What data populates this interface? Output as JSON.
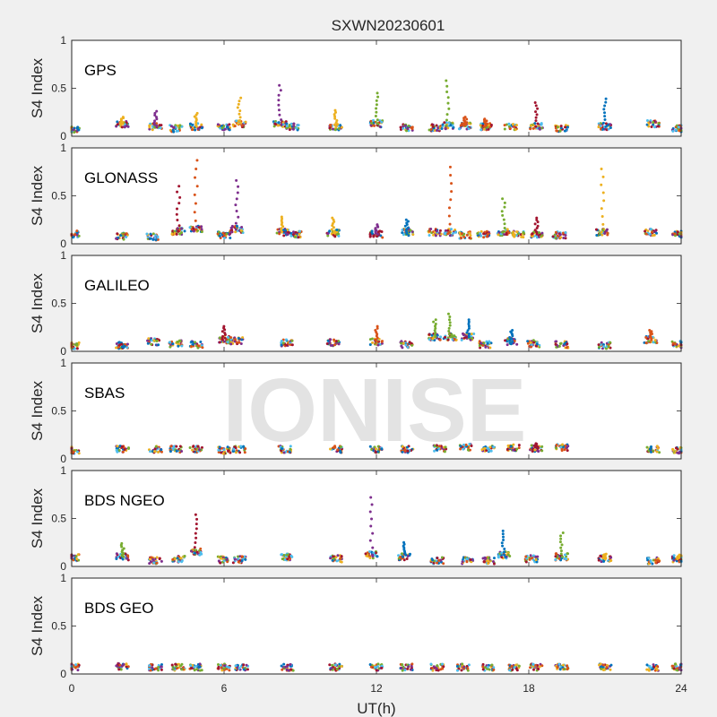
{
  "chart_data": {
    "type": "scatter",
    "title": "SXWN20230601",
    "xlabel": "UT(h)",
    "ylabel": "S4 Index",
    "xlim": [
      0,
      24
    ],
    "ylim": [
      0,
      1
    ],
    "xticks": [
      0,
      6,
      12,
      18,
      24
    ],
    "yticks": [
      0,
      0.5,
      1
    ],
    "ytick_labels": [
      "0",
      "0.5",
      "1"
    ],
    "watermark": "IONISE",
    "palette": [
      "#0072bd",
      "#d95319",
      "#edb120",
      "#7e2f8e",
      "#77ac30",
      "#4dbeee",
      "#a2142f"
    ],
    "panels": [
      {
        "name": "GPS",
        "clusters": [
          {
            "x": 0.05,
            "y": 0.07
          },
          {
            "x": 2.0,
            "y": 0.12,
            "peak": 0.2
          },
          {
            "x": 3.3,
            "y": 0.1,
            "peak": 0.26
          },
          {
            "x": 4.1,
            "y": 0.08
          },
          {
            "x": 4.9,
            "y": 0.1,
            "peak": 0.24
          },
          {
            "x": 6.0,
            "y": 0.09
          },
          {
            "x": 6.6,
            "y": 0.13,
            "peak": 0.4
          },
          {
            "x": 8.2,
            "y": 0.12,
            "peak": 0.53
          },
          {
            "x": 8.7,
            "y": 0.1
          },
          {
            "x": 10.4,
            "y": 0.1,
            "peak": 0.27
          },
          {
            "x": 12.0,
            "y": 0.13,
            "peak": 0.45
          },
          {
            "x": 13.2,
            "y": 0.09
          },
          {
            "x": 14.3,
            "y": 0.09
          },
          {
            "x": 14.8,
            "y": 0.11,
            "peak": 0.58
          },
          {
            "x": 15.5,
            "y": 0.11,
            "peak": 0.2
          },
          {
            "x": 16.3,
            "y": 0.1,
            "peak": 0.18
          },
          {
            "x": 17.3,
            "y": 0.1
          },
          {
            "x": 18.3,
            "y": 0.1,
            "peak": 0.35
          },
          {
            "x": 19.3,
            "y": 0.08
          },
          {
            "x": 21.0,
            "y": 0.1,
            "peak": 0.39
          },
          {
            "x": 22.9,
            "y": 0.13
          },
          {
            "x": 23.9,
            "y": 0.08
          }
        ]
      },
      {
        "name": "GLONASS",
        "clusters": [
          {
            "x": 0.05,
            "y": 0.1
          },
          {
            "x": 2.0,
            "y": 0.08
          },
          {
            "x": 3.2,
            "y": 0.07
          },
          {
            "x": 4.2,
            "y": 0.13,
            "peak": 0.6
          },
          {
            "x": 4.9,
            "y": 0.15,
            "peak": 0.87
          },
          {
            "x": 6.0,
            "y": 0.09
          },
          {
            "x": 6.5,
            "y": 0.15,
            "peak": 0.66
          },
          {
            "x": 8.3,
            "y": 0.12,
            "peak": 0.28
          },
          {
            "x": 8.8,
            "y": 0.1
          },
          {
            "x": 10.3,
            "y": 0.11,
            "peak": 0.27
          },
          {
            "x": 12.0,
            "y": 0.1,
            "peak": 0.2
          },
          {
            "x": 13.2,
            "y": 0.12,
            "peak": 0.25
          },
          {
            "x": 14.3,
            "y": 0.12
          },
          {
            "x": 14.9,
            "y": 0.12,
            "peak": 0.8
          },
          {
            "x": 15.5,
            "y": 0.09
          },
          {
            "x": 16.2,
            "y": 0.1
          },
          {
            "x": 17.0,
            "y": 0.12,
            "peak": 0.47
          },
          {
            "x": 17.6,
            "y": 0.1
          },
          {
            "x": 18.3,
            "y": 0.1,
            "peak": 0.27
          },
          {
            "x": 19.2,
            "y": 0.09
          },
          {
            "x": 20.9,
            "y": 0.12,
            "peak": 0.78
          },
          {
            "x": 22.8,
            "y": 0.12
          },
          {
            "x": 23.9,
            "y": 0.1
          }
        ]
      },
      {
        "name": "GALILEO",
        "clusters": [
          {
            "x": 0.05,
            "y": 0.06
          },
          {
            "x": 2.0,
            "y": 0.06
          },
          {
            "x": 3.2,
            "y": 0.1
          },
          {
            "x": 4.1,
            "y": 0.08
          },
          {
            "x": 4.9,
            "y": 0.07
          },
          {
            "x": 6.0,
            "y": 0.12,
            "peak": 0.26
          },
          {
            "x": 6.5,
            "y": 0.11
          },
          {
            "x": 8.5,
            "y": 0.09
          },
          {
            "x": 10.3,
            "y": 0.09
          },
          {
            "x": 12.0,
            "y": 0.1,
            "peak": 0.26
          },
          {
            "x": 13.2,
            "y": 0.07
          },
          {
            "x": 14.3,
            "y": 0.15,
            "peak": 0.33
          },
          {
            "x": 14.9,
            "y": 0.15,
            "peak": 0.39
          },
          {
            "x": 15.6,
            "y": 0.15,
            "peak": 0.33
          },
          {
            "x": 16.3,
            "y": 0.07
          },
          {
            "x": 17.3,
            "y": 0.1,
            "peak": 0.22
          },
          {
            "x": 18.2,
            "y": 0.08
          },
          {
            "x": 19.3,
            "y": 0.07
          },
          {
            "x": 21.0,
            "y": 0.06
          },
          {
            "x": 22.8,
            "y": 0.12,
            "peak": 0.22
          },
          {
            "x": 23.9,
            "y": 0.07
          }
        ]
      },
      {
        "name": "SBAS",
        "clusters": [
          {
            "x": 0.05,
            "y": 0.09
          },
          {
            "x": 2.0,
            "y": 0.1
          },
          {
            "x": 3.3,
            "y": 0.1
          },
          {
            "x": 4.1,
            "y": 0.1
          },
          {
            "x": 4.9,
            "y": 0.1
          },
          {
            "x": 6.0,
            "y": 0.09
          },
          {
            "x": 6.6,
            "y": 0.1
          },
          {
            "x": 8.4,
            "y": 0.1
          },
          {
            "x": 10.4,
            "y": 0.1
          },
          {
            "x": 12.0,
            "y": 0.1
          },
          {
            "x": 13.2,
            "y": 0.1
          },
          {
            "x": 14.5,
            "y": 0.11
          },
          {
            "x": 15.5,
            "y": 0.12
          },
          {
            "x": 16.4,
            "y": 0.11
          },
          {
            "x": 17.4,
            "y": 0.12
          },
          {
            "x": 18.3,
            "y": 0.11,
            "peak": 0.16
          },
          {
            "x": 19.3,
            "y": 0.12
          },
          {
            "x": 22.9,
            "y": 0.1
          },
          {
            "x": 23.9,
            "y": 0.09
          }
        ]
      },
      {
        "name": "BDS NGEO",
        "clusters": [
          {
            "x": 0.05,
            "y": 0.09
          },
          {
            "x": 2.0,
            "y": 0.1,
            "peak": 0.24
          },
          {
            "x": 3.3,
            "y": 0.06
          },
          {
            "x": 4.2,
            "y": 0.08
          },
          {
            "x": 4.9,
            "y": 0.15,
            "peak": 0.54
          },
          {
            "x": 6.0,
            "y": 0.07
          },
          {
            "x": 6.6,
            "y": 0.07
          },
          {
            "x": 8.5,
            "y": 0.1
          },
          {
            "x": 10.4,
            "y": 0.08
          },
          {
            "x": 11.8,
            "y": 0.12,
            "peak": 0.72
          },
          {
            "x": 13.1,
            "y": 0.1,
            "peak": 0.25
          },
          {
            "x": 14.4,
            "y": 0.06
          },
          {
            "x": 15.6,
            "y": 0.06
          },
          {
            "x": 16.4,
            "y": 0.06
          },
          {
            "x": 17.0,
            "y": 0.12,
            "peak": 0.37
          },
          {
            "x": 18.1,
            "y": 0.08
          },
          {
            "x": 19.3,
            "y": 0.1,
            "peak": 0.35
          },
          {
            "x": 21.0,
            "y": 0.08,
            "peak": 0.13
          },
          {
            "x": 22.9,
            "y": 0.06
          },
          {
            "x": 23.9,
            "y": 0.08,
            "peak": 0.12
          }
        ]
      },
      {
        "name": "BDS GEO",
        "clusters": [
          {
            "x": 0.05,
            "y": 0.07
          },
          {
            "x": 2.0,
            "y": 0.08
          },
          {
            "x": 3.3,
            "y": 0.07
          },
          {
            "x": 4.2,
            "y": 0.07
          },
          {
            "x": 4.9,
            "y": 0.07
          },
          {
            "x": 6.0,
            "y": 0.07
          },
          {
            "x": 6.7,
            "y": 0.07
          },
          {
            "x": 8.5,
            "y": 0.07
          },
          {
            "x": 10.4,
            "y": 0.07
          },
          {
            "x": 12.0,
            "y": 0.07
          },
          {
            "x": 13.2,
            "y": 0.07
          },
          {
            "x": 14.4,
            "y": 0.07
          },
          {
            "x": 15.4,
            "y": 0.07
          },
          {
            "x": 16.4,
            "y": 0.07
          },
          {
            "x": 17.4,
            "y": 0.07
          },
          {
            "x": 18.3,
            "y": 0.07
          },
          {
            "x": 19.3,
            "y": 0.07
          },
          {
            "x": 21.0,
            "y": 0.07
          },
          {
            "x": 22.9,
            "y": 0.07
          },
          {
            "x": 23.9,
            "y": 0.07
          }
        ]
      }
    ]
  }
}
